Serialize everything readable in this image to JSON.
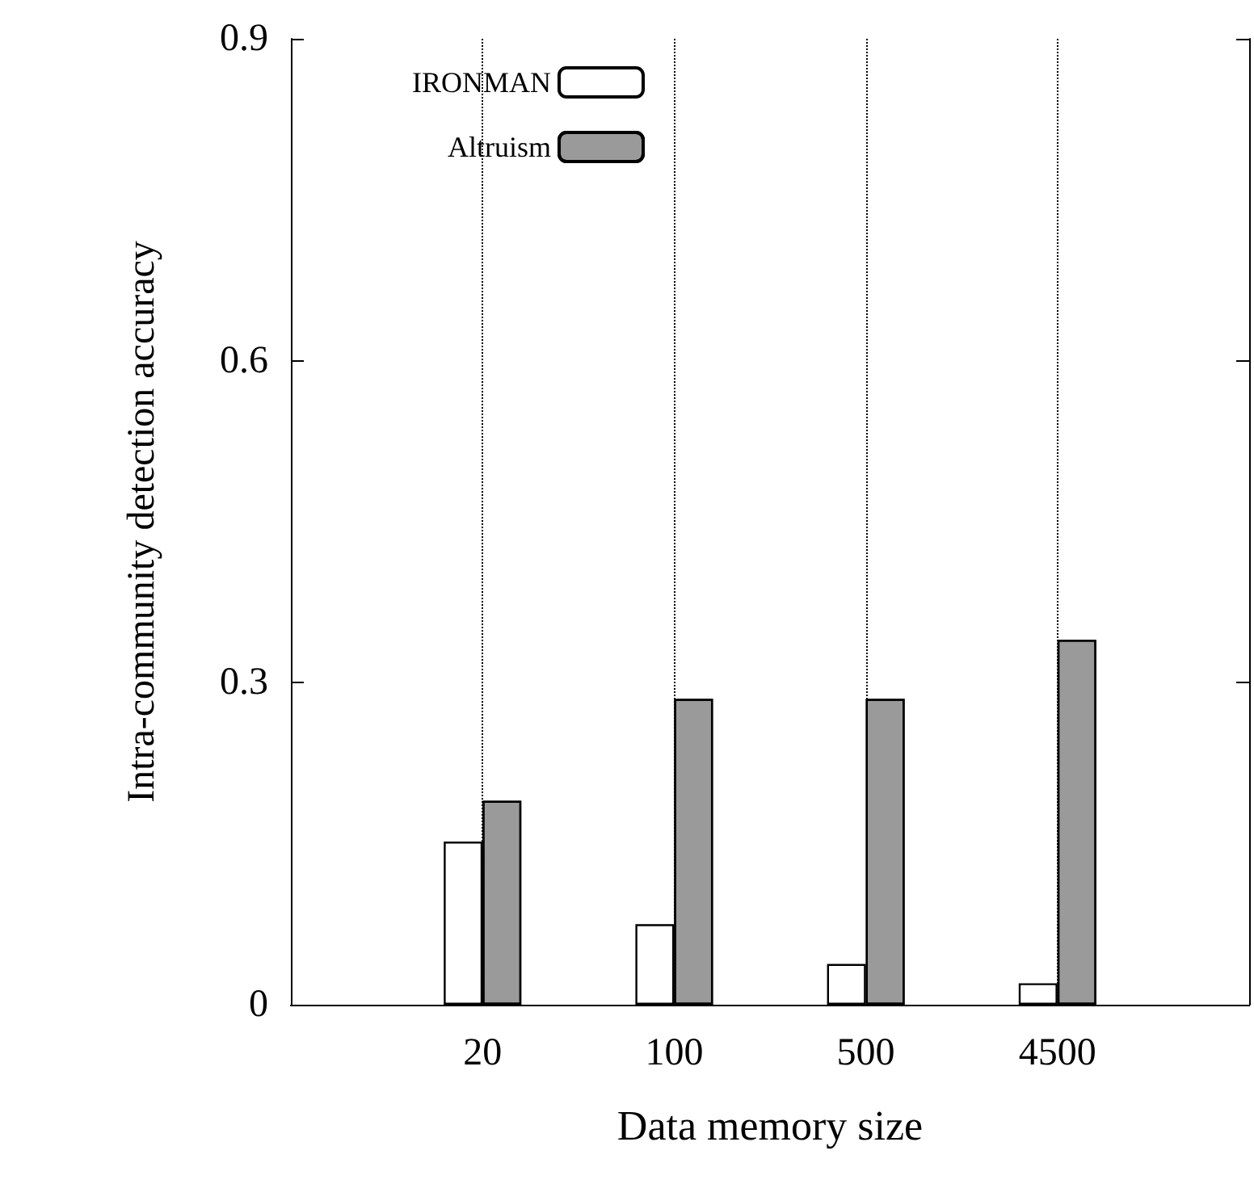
{
  "chart_data": {
    "type": "bar",
    "xlabel": "Data memory size",
    "ylabel": "Intra-community detection accuracy",
    "categories": [
      "20",
      "100",
      "500",
      "4500"
    ],
    "series": [
      {
        "name": "IRONMAN",
        "color": "#ffffff",
        "values": [
          0.152,
          0.075,
          0.038,
          0.02
        ]
      },
      {
        "name": "Altruism",
        "color": "#9a9a9a",
        "values": [
          0.19,
          0.285,
          0.285,
          0.34
        ]
      }
    ],
    "ylim": [
      0,
      0.9
    ],
    "yticks": [
      0,
      0.3,
      0.6,
      0.9
    ],
    "grid": "x",
    "legend": "top left"
  }
}
